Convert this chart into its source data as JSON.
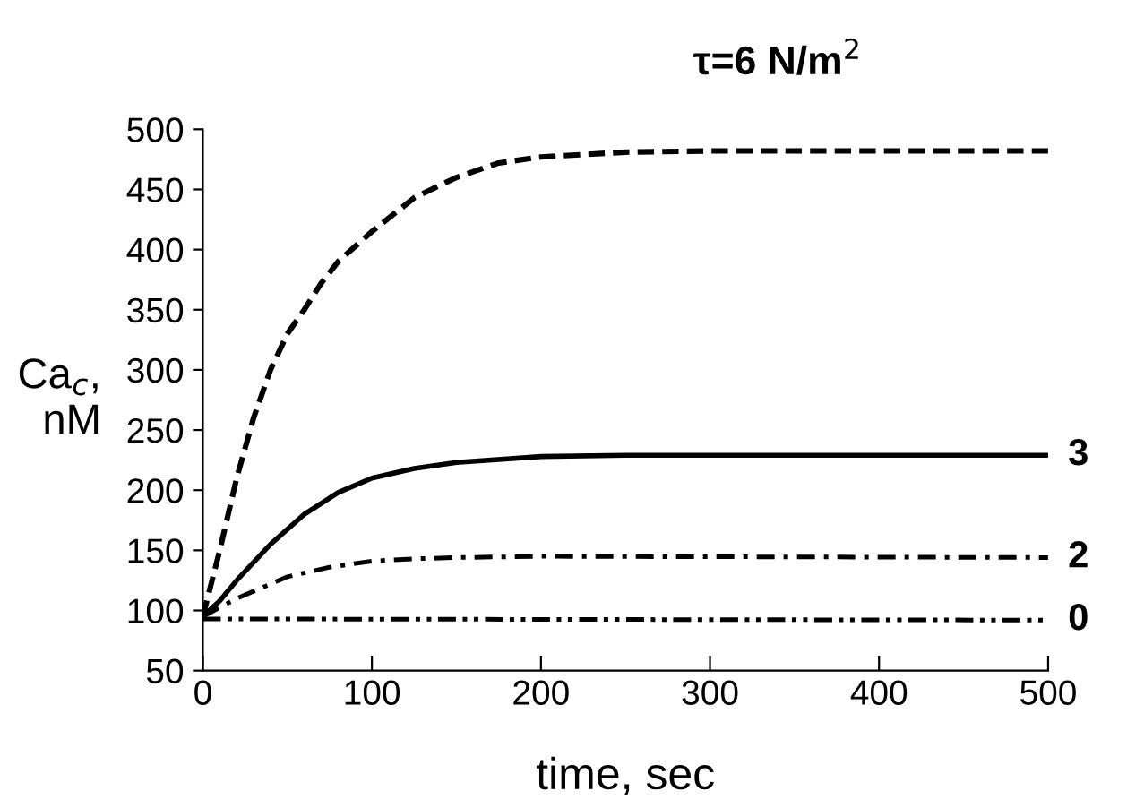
{
  "chart_data": {
    "type": "line",
    "title": "τ=6 N/m$^{2}$",
    "xlabel": "time, sec",
    "ylabel": "Ca$_{c}$,\nnM",
    "xlim": [
      0,
      500
    ],
    "xticks": [
      0,
      100,
      200,
      300,
      400,
      500
    ],
    "ylim": [
      50,
      500
    ],
    "yticks": [
      50,
      100,
      150,
      200,
      250,
      300,
      350,
      400,
      450,
      500
    ],
    "grid": false,
    "legend": false,
    "marker": "none",
    "series": [
      {
        "color": "#000000",
        "line_style": "dashed",
        "x": [
          0,
          10,
          20,
          30,
          40,
          50,
          60,
          70,
          80,
          100,
          125,
          150,
          175,
          200,
          250,
          300,
          500
        ],
        "values": [
          95,
          150,
          210,
          260,
          300,
          330,
          350,
          372,
          390,
          415,
          443,
          460,
          472,
          477,
          481,
          482,
          482
        ]
      },
      {
        "name": "3",
        "color": "#000000",
        "line_style": "solid",
        "x": [
          0,
          10,
          20,
          40,
          60,
          80,
          100,
          125,
          150,
          200,
          250,
          500
        ],
        "values": [
          95,
          108,
          125,
          155,
          180,
          198,
          210,
          218,
          223,
          228,
          229,
          229
        ]
      },
      {
        "name": "2",
        "color": "#000000",
        "line_style": "dashdot",
        "x": [
          0,
          20,
          50,
          75,
          100,
          125,
          150,
          200,
          500
        ],
        "values": [
          95,
          110,
          128,
          136,
          141,
          143,
          144,
          145,
          144
        ]
      },
      {
        "name": "0",
        "color": "#000000",
        "line_style": "dashdotdot",
        "x": [
          0,
          500
        ],
        "values": [
          93,
          92
        ]
      }
    ]
  }
}
